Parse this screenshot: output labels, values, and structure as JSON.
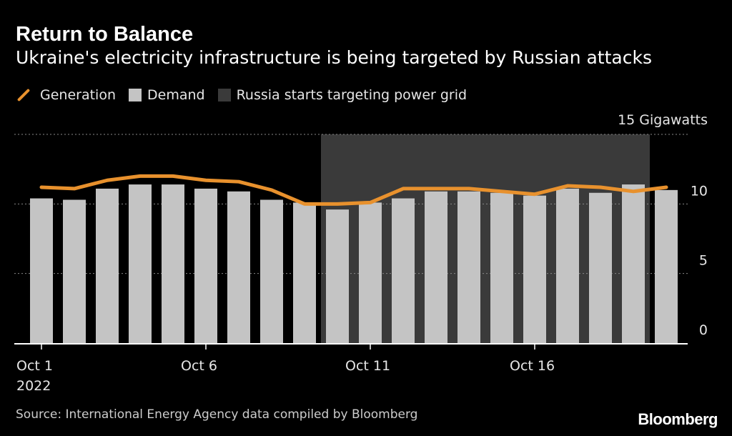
{
  "header": {
    "title": "Return to Balance",
    "subtitle": "Ukraine's electricity infrastructure is being targeted by Russian attacks"
  },
  "legend": {
    "generation": "Generation",
    "demand": "Demand",
    "shade": "Russia starts targeting power grid"
  },
  "colors": {
    "generation": "#e8912d",
    "demand": "#c4c4c4",
    "shade": "#3a3a3a",
    "grid": "#888888",
    "background": "#000000"
  },
  "chart_data": {
    "type": "bar+line",
    "title": "Return to Balance",
    "subtitle": "Ukraine's electricity infrastructure is being targeted by Russian attacks",
    "ylabel": "Gigawatts",
    "ylim": [
      0,
      15
    ],
    "yticks": [
      {
        "value": 15,
        "label": "15 Gigawatts"
      },
      {
        "value": 10,
        "label": "10"
      },
      {
        "value": 5,
        "label": "5"
      },
      {
        "value": 0,
        "label": "0"
      }
    ],
    "x_days": [
      1,
      2,
      3,
      4,
      5,
      6,
      7,
      8,
      9,
      10,
      11,
      12,
      13,
      14,
      15,
      16,
      17,
      18,
      19,
      20
    ],
    "xticks": [
      {
        "day": 1,
        "label": "Oct 1",
        "sublabel": "2022"
      },
      {
        "day": 6,
        "label": "Oct 6",
        "sublabel": ""
      },
      {
        "day": 11,
        "label": "Oct 11",
        "sublabel": ""
      },
      {
        "day": 16,
        "label": "Oct 16",
        "sublabel": ""
      }
    ],
    "shaded_region": {
      "label": "Russia starts targeting power grid",
      "start_day": 10,
      "end_day": 20
    },
    "series": [
      {
        "name": "Demand",
        "type": "bar",
        "values": [
          10.4,
          10.3,
          11.1,
          11.4,
          11.4,
          11.1,
          10.9,
          10.3,
          10.1,
          9.6,
          10.1,
          10.4,
          10.9,
          10.9,
          10.8,
          10.6,
          11.1,
          10.8,
          11.4,
          11.0
        ]
      },
      {
        "name": "Generation",
        "type": "line",
        "values": [
          11.2,
          11.1,
          11.7,
          12.0,
          12.0,
          11.7,
          11.6,
          11.0,
          10.0,
          10.0,
          10.1,
          11.1,
          11.1,
          11.1,
          10.9,
          10.7,
          11.3,
          11.2,
          10.9,
          11.2
        ]
      }
    ]
  },
  "footer": {
    "source": "Source: International Energy Agency data compiled by Bloomberg",
    "brand": "Bloomberg"
  }
}
